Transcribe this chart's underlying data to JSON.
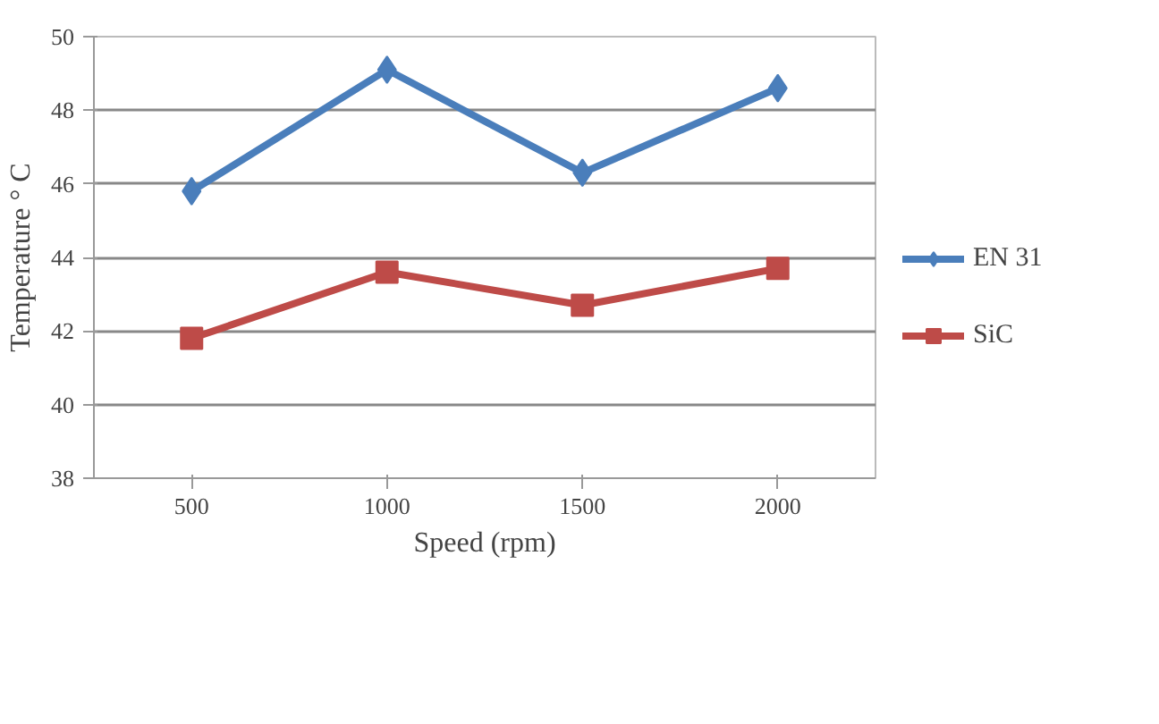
{
  "chart_data": {
    "type": "line",
    "xlabel": "Speed (rpm)",
    "ylabel": "Temperature ° C",
    "categories": [
      "500",
      "1000",
      "1500",
      "2000"
    ],
    "series": [
      {
        "name": "EN 31",
        "color": "#4a7ebb",
        "values": [
          45.8,
          49.1,
          46.3,
          48.6
        ],
        "marker": "diamond"
      },
      {
        "name": "SiC",
        "color": "#be4b48",
        "values": [
          41.8,
          43.6,
          42.7,
          43.7
        ],
        "marker": "square"
      }
    ],
    "ylim": [
      38,
      50
    ],
    "yticks": [
      38,
      40,
      42,
      44,
      46,
      48,
      50
    ],
    "grid": "y",
    "legend": "right"
  }
}
